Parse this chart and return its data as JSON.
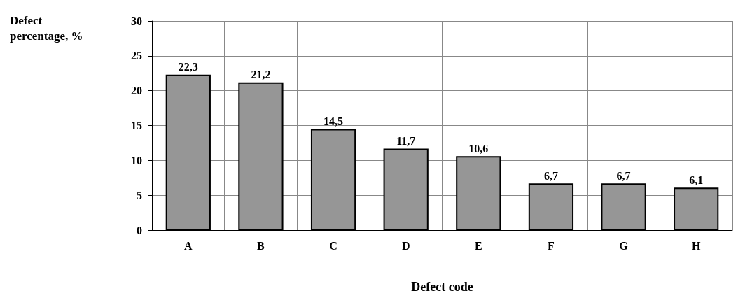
{
  "chart_data": {
    "type": "bar",
    "xlabel": "Defect code",
    "ylabel": "Defect percentage, %",
    "categories": [
      "A",
      "B",
      "C",
      "D",
      "E",
      "F",
      "G",
      "H"
    ],
    "values": [
      22.3,
      21.2,
      14.5,
      11.7,
      10.6,
      6.7,
      6.7,
      6.1
    ],
    "value_labels": [
      "22,3",
      "21,2",
      "14,5",
      "11,7",
      "10,6",
      "6,7",
      "6,7",
      "6,1"
    ],
    "color": "#969696",
    "ylim": [
      0,
      30
    ],
    "yticks": [
      0,
      5,
      10,
      15,
      20,
      25,
      30
    ],
    "grid": true
  }
}
